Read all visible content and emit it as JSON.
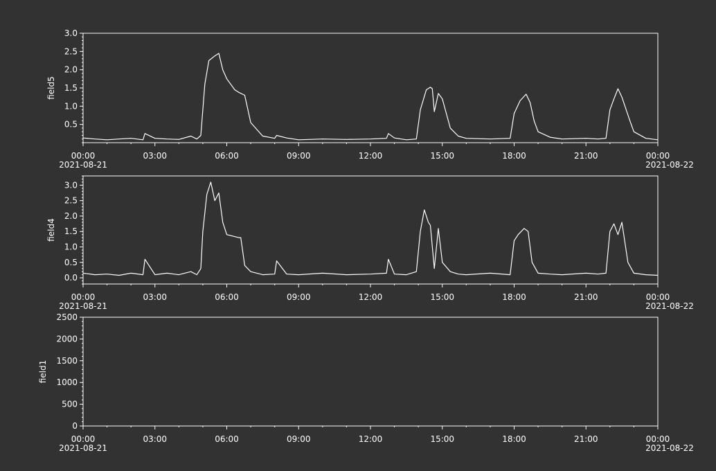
{
  "colors": {
    "background": "#323232",
    "foreground": "#ffffff"
  },
  "chart_data": [
    {
      "type": "line",
      "ylabel": "field5",
      "ylim": [
        0,
        3.0
      ],
      "yticks": [
        0.5,
        1.0,
        1.5,
        2.0,
        2.5,
        3.0
      ],
      "ytick_labels": [
        "0.5",
        "1.0",
        "1.5",
        "2.0",
        "2.5",
        "3.0"
      ],
      "xlim": [
        "2021-08-21 00:00",
        "2021-08-22 00:00"
      ],
      "xtick_labels": [
        "00:00",
        "03:00",
        "06:00",
        "09:00",
        "12:00",
        "15:00",
        "18:00",
        "21:00",
        "00:00"
      ],
      "date_labels": {
        "start": "2021-08-21",
        "end": "2021-08-22"
      },
      "series": [
        {
          "x": [
            "00:00",
            "00:30",
            "01:00",
            "01:30",
            "02:00",
            "02:30",
            "02:35",
            "03:00",
            "03:30",
            "04:00",
            "04:30",
            "04:45",
            "04:55",
            "05:05",
            "05:15",
            "05:30",
            "05:40",
            "05:50",
            "06:00",
            "06:20",
            "06:30",
            "06:45",
            "07:00",
            "07:30",
            "08:00",
            "08:05",
            "08:30",
            "09:00",
            "10:00",
            "11:00",
            "12:00",
            "12:40",
            "12:45",
            "13:00",
            "13:30",
            "13:55",
            "14:05",
            "14:20",
            "14:30",
            "14:35",
            "14:40",
            "14:50",
            "15:00",
            "15:20",
            "15:40",
            "16:00",
            "17:00",
            "17:50",
            "18:00",
            "18:15",
            "18:30",
            "18:40",
            "18:50",
            "19:00",
            "19:30",
            "20:00",
            "21:00",
            "21:30",
            "21:50",
            "22:00",
            "22:10",
            "22:20",
            "22:30",
            "22:50",
            "23:00",
            "23:30",
            "00:00"
          ],
          "values": [
            0.13,
            0.1,
            0.08,
            0.1,
            0.12,
            0.08,
            0.25,
            0.12,
            0.1,
            0.09,
            0.18,
            0.1,
            0.2,
            1.6,
            2.25,
            2.38,
            2.45,
            2.0,
            1.75,
            1.45,
            1.38,
            1.3,
            0.55,
            0.18,
            0.12,
            0.2,
            0.13,
            0.08,
            0.1,
            0.09,
            0.1,
            0.12,
            0.25,
            0.13,
            0.08,
            0.1,
            0.9,
            1.45,
            1.52,
            1.48,
            0.85,
            1.35,
            1.2,
            0.4,
            0.18,
            0.12,
            0.1,
            0.12,
            0.8,
            1.15,
            1.33,
            1.1,
            0.6,
            0.3,
            0.15,
            0.1,
            0.12,
            0.1,
            0.12,
            0.9,
            1.2,
            1.48,
            1.25,
            0.6,
            0.3,
            0.12,
            0.08
          ]
        }
      ]
    },
    {
      "type": "line",
      "ylabel": "field4",
      "ylim": [
        -0.2,
        3.3
      ],
      "yticks": [
        0.0,
        0.5,
        1.0,
        1.5,
        2.0,
        2.5,
        3.0
      ],
      "ytick_labels": [
        "0.0",
        "0.5",
        "1.0",
        "1.5",
        "2.0",
        "2.5",
        "3.0"
      ],
      "xlim": [
        "2021-08-21 00:00",
        "2021-08-22 00:00"
      ],
      "xtick_labels": [
        "00:00",
        "03:00",
        "06:00",
        "09:00",
        "12:00",
        "15:00",
        "18:00",
        "21:00",
        "00:00"
      ],
      "date_labels": {
        "start": "2021-08-21",
        "end": "2021-08-22"
      },
      "series": [
        {
          "x": [
            "00:00",
            "00:30",
            "01:00",
            "01:30",
            "02:00",
            "02:30",
            "02:35",
            "03:00",
            "03:30",
            "04:00",
            "04:30",
            "04:45",
            "04:55",
            "05:00",
            "05:10",
            "05:20",
            "05:30",
            "05:40",
            "05:50",
            "06:00",
            "06:30",
            "06:35",
            "06:45",
            "07:00",
            "07:30",
            "08:00",
            "08:05",
            "08:30",
            "09:00",
            "10:00",
            "11:00",
            "12:00",
            "12:40",
            "12:45",
            "13:00",
            "13:30",
            "13:55",
            "14:05",
            "14:15",
            "14:25",
            "14:30",
            "14:40",
            "14:50",
            "15:00",
            "15:20",
            "15:40",
            "16:00",
            "17:00",
            "17:50",
            "18:00",
            "18:10",
            "18:25",
            "18:35",
            "18:45",
            "19:00",
            "19:30",
            "20:00",
            "21:00",
            "21:30",
            "21:50",
            "22:00",
            "22:10",
            "22:20",
            "22:30",
            "22:45",
            "23:00",
            "23:30",
            "00:00"
          ],
          "values": [
            0.15,
            0.1,
            0.12,
            0.08,
            0.15,
            0.1,
            0.6,
            0.1,
            0.15,
            0.1,
            0.2,
            0.1,
            0.3,
            1.5,
            2.7,
            3.1,
            2.5,
            2.75,
            1.8,
            1.4,
            1.3,
            1.3,
            0.4,
            0.2,
            0.1,
            0.12,
            0.55,
            0.12,
            0.1,
            0.15,
            0.1,
            0.12,
            0.15,
            0.6,
            0.12,
            0.1,
            0.2,
            1.5,
            2.2,
            1.8,
            1.7,
            0.3,
            1.6,
            0.5,
            0.2,
            0.12,
            0.1,
            0.15,
            0.1,
            1.2,
            1.4,
            1.6,
            1.5,
            0.5,
            0.15,
            0.12,
            0.1,
            0.15,
            0.12,
            0.15,
            1.5,
            1.75,
            1.4,
            1.8,
            0.5,
            0.15,
            0.1,
            0.08
          ]
        }
      ]
    },
    {
      "type": "line",
      "ylabel": "field1",
      "ylim": [
        0,
        2500
      ],
      "yticks": [
        0,
        500,
        1000,
        1500,
        2000,
        2500
      ],
      "ytick_labels": [
        "0",
        "500",
        "1000",
        "1500",
        "2000",
        "2500"
      ],
      "xlim": [
        "2021-08-21 00:00",
        "2021-08-22 00:00"
      ],
      "xtick_labels": [
        "00:00",
        "03:00",
        "06:00",
        "09:00",
        "12:00",
        "15:00",
        "18:00",
        "21:00",
        "00:00"
      ],
      "date_labels": {
        "start": "2021-08-21",
        "end": "2021-08-22"
      },
      "series": []
    }
  ]
}
